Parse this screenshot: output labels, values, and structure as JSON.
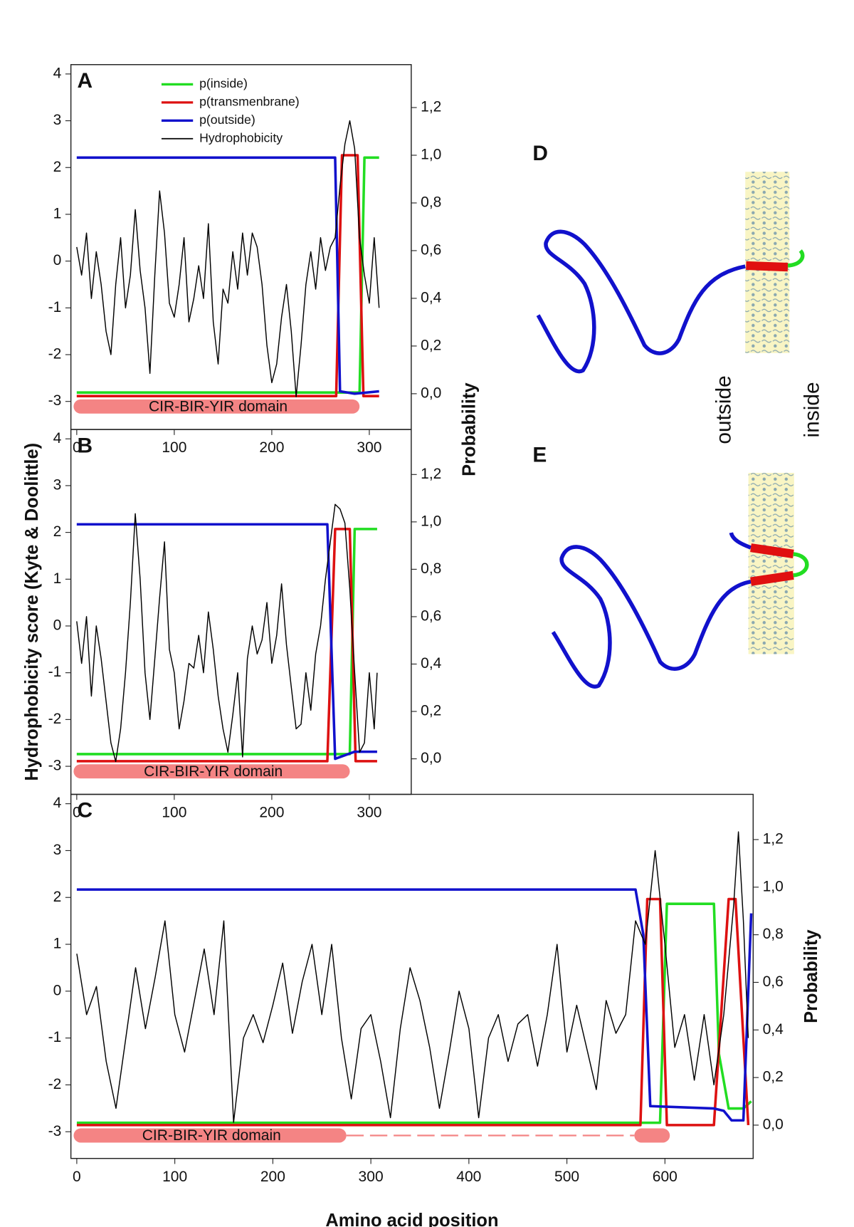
{
  "chart_data": [
    {
      "type": "line",
      "panel": "A",
      "xlim": [
        -6,
        343
      ],
      "xticks": [
        0,
        100,
        200,
        300
      ],
      "ylim": [
        -3.6,
        4.2
      ],
      "yticks": [
        -3,
        -2,
        -1,
        0,
        1,
        2,
        3,
        4
      ],
      "y2lim": [
        -0.15,
        1.38
      ],
      "y2ticks": [
        {
          "value": 0,
          "label": "0,0"
        },
        {
          "value": 0.2,
          "label": "0,2"
        },
        {
          "value": 0.4,
          "label": "0,4"
        },
        {
          "value": 0.6,
          "label": "0,6"
        },
        {
          "value": 0.8,
          "label": "0,8"
        },
        {
          "value": 1.0,
          "label": "1,0"
        },
        {
          "value": 1.2,
          "label": "1,2"
        }
      ],
      "legend": "top",
      "domain": {
        "label": "CIR-BIR-YIR domain",
        "color": "#f48484",
        "segments": [
          [
            0,
            290
          ]
        ]
      },
      "series": [
        {
          "name": "p(inside)",
          "color": "#22dd22",
          "axis": "y2",
          "x": [
            0,
            290,
            295,
            310
          ],
          "values": [
            0.005,
            0.005,
            0.99,
            0.99
          ]
        },
        {
          "name": "p(transmenbrane)",
          "color": "#dd1111",
          "axis": "y2",
          "x": [
            0,
            266,
            272,
            288,
            294,
            310
          ],
          "values": [
            -0.01,
            -0.01,
            1.0,
            1.0,
            -0.01,
            -0.01
          ]
        },
        {
          "name": "p(outside)",
          "color": "#1111cc",
          "axis": "y2",
          "x": [
            0,
            265,
            270,
            285,
            310
          ],
          "values": [
            0.99,
            0.99,
            0.01,
            0.0,
            0.01
          ]
        },
        {
          "name": "Hydrophobicity",
          "color": "#000000",
          "x": [
            0,
            5,
            10,
            15,
            20,
            25,
            30,
            35,
            40,
            45,
            50,
            55,
            60,
            65,
            70,
            75,
            80,
            85,
            90,
            95,
            100,
            105,
            110,
            115,
            120,
            125,
            130,
            135,
            140,
            145,
            150,
            155,
            160,
            165,
            170,
            175,
            180,
            185,
            190,
            195,
            200,
            205,
            210,
            215,
            220,
            225,
            230,
            235,
            240,
            245,
            250,
            255,
            260,
            265,
            270,
            275,
            280,
            285,
            290,
            295,
            300,
            305,
            310
          ],
          "values": [
            0.3,
            -0.3,
            0.6,
            -0.8,
            0.2,
            -0.5,
            -1.5,
            -2.0,
            -0.5,
            0.5,
            -1.0,
            -0.3,
            1.1,
            -0.2,
            -1.0,
            -2.4,
            -0.3,
            1.5,
            0.6,
            -0.9,
            -1.2,
            -0.5,
            0.5,
            -1.3,
            -0.8,
            -0.1,
            -0.8,
            0.8,
            -1.3,
            -2.2,
            -0.6,
            -0.9,
            0.2,
            -0.6,
            0.6,
            -0.3,
            0.6,
            0.3,
            -0.5,
            -1.8,
            -2.6,
            -2.2,
            -1.2,
            -0.5,
            -1.5,
            -2.9,
            -1.8,
            -0.5,
            0.2,
            -0.6,
            0.5,
            -0.2,
            0.3,
            0.5,
            1.6,
            2.5,
            3.0,
            2.4,
            0.5,
            -0.3,
            -0.9,
            0.5,
            -1.0
          ]
        }
      ]
    },
    {
      "type": "line",
      "panel": "B",
      "y_label": "Hydrophobicity score (Kyte & Doolittle)",
      "y2_label": "Probability",
      "xlim": [
        -6,
        343
      ],
      "xticks": [
        0,
        100,
        200,
        300
      ],
      "ylim": [
        -3.6,
        4.2
      ],
      "yticks": [
        -3,
        -2,
        -1,
        0,
        1,
        2,
        3,
        4
      ],
      "y2lim": [
        -0.15,
        1.39
      ],
      "y2ticks": [
        {
          "value": 0,
          "label": "0,0"
        },
        {
          "value": 0.2,
          "label": "0,2"
        },
        {
          "value": 0.4,
          "label": "0,4"
        },
        {
          "value": 0.6,
          "label": "0,6"
        },
        {
          "value": 0.8,
          "label": "0,8"
        },
        {
          "value": 1.0,
          "label": "1,0"
        },
        {
          "value": 1.2,
          "label": "1,2"
        }
      ],
      "domain": {
        "label": "CIR-BIR-YIR domain",
        "color": "#f48484",
        "segments": [
          [
            0,
            280
          ]
        ]
      },
      "series": [
        {
          "color": "#22dd22",
          "axis": "y2",
          "x": [
            0,
            280,
            285,
            308
          ],
          "values": [
            0.02,
            0.02,
            0.97,
            0.97
          ]
        },
        {
          "color": "#dd1111",
          "axis": "y2",
          "x": [
            0,
            257,
            265,
            280,
            286,
            308
          ],
          "values": [
            -0.01,
            -0.01,
            0.97,
            0.97,
            -0.01,
            -0.01
          ]
        },
        {
          "color": "#1111cc",
          "axis": "y2",
          "x": [
            0,
            257,
            265,
            285,
            308
          ],
          "values": [
            0.99,
            0.99,
            0.0,
            0.03,
            0.03
          ]
        },
        {
          "color": "#000000",
          "x": [
            0,
            5,
            10,
            15,
            20,
            25,
            30,
            35,
            40,
            45,
            50,
            55,
            60,
            65,
            70,
            75,
            80,
            85,
            90,
            95,
            100,
            105,
            110,
            115,
            120,
            125,
            130,
            135,
            140,
            145,
            150,
            155,
            160,
            165,
            170,
            175,
            180,
            185,
            190,
            195,
            200,
            205,
            210,
            215,
            220,
            225,
            230,
            235,
            240,
            245,
            250,
            255,
            260,
            265,
            270,
            275,
            280,
            285,
            290,
            295,
            300,
            305,
            308
          ],
          "values": [
            0.1,
            -0.8,
            0.2,
            -1.5,
            0.0,
            -0.7,
            -1.6,
            -2.5,
            -2.9,
            -2.2,
            -1.0,
            0.5,
            2.4,
            1.0,
            -1.0,
            -2.0,
            -0.7,
            0.6,
            1.8,
            -0.5,
            -1.0,
            -2.2,
            -1.6,
            -0.8,
            -0.9,
            -0.2,
            -1.0,
            0.3,
            -0.5,
            -1.5,
            -2.2,
            -2.7,
            -1.9,
            -1.0,
            -2.8,
            -0.7,
            0.0,
            -0.6,
            -0.3,
            0.5,
            -0.8,
            -0.2,
            0.9,
            -0.4,
            -1.3,
            -2.2,
            -2.1,
            -1.0,
            -1.8,
            -0.6,
            0.0,
            1.0,
            1.8,
            2.6,
            2.5,
            2.2,
            0.8,
            -1.0,
            -2.7,
            -2.5,
            -1.0,
            -2.2,
            -1.0
          ]
        }
      ]
    },
    {
      "type": "line",
      "panel": "C",
      "x_label": "Amino acid position",
      "y2_label": "Probability",
      "xlim": [
        -6,
        690
      ],
      "xticks": [
        0,
        100,
        200,
        300,
        400,
        500,
        600
      ],
      "ylim": [
        -3.57,
        4.2
      ],
      "yticks": [
        -3,
        -2,
        -1,
        0,
        1,
        2,
        3,
        4
      ],
      "y2lim": [
        -0.14,
        1.39
      ],
      "y2ticks": [
        {
          "value": 0,
          "label": "0,0"
        },
        {
          "value": 0.2,
          "label": "0,2"
        },
        {
          "value": 0.4,
          "label": "0,4"
        },
        {
          "value": 0.6,
          "label": "0,6"
        },
        {
          "value": 0.8,
          "label": "0,8"
        },
        {
          "value": 1.0,
          "label": "1,0"
        },
        {
          "value": 1.2,
          "label": "1,2"
        }
      ],
      "domain": {
        "label": "CIR-BIR-YIR domain",
        "color": "#f48484",
        "segments": [
          [
            0,
            275
          ],
          [
            572,
            605
          ]
        ]
      },
      "series": [
        {
          "color": "#22dd22",
          "axis": "y2",
          "x": [
            0,
            595,
            602,
            650,
            655,
            665,
            680,
            688
          ],
          "values": [
            0.01,
            0.01,
            0.93,
            0.93,
            0.3,
            0.07,
            0.07,
            0.1
          ]
        },
        {
          "color": "#dd1111",
          "axis": "y2",
          "x": [
            0,
            575,
            582,
            595,
            602,
            650,
            665,
            672,
            685
          ],
          "values": [
            0,
            0,
            0.95,
            0.95,
            0,
            0,
            0.95,
            0.95,
            0
          ]
        },
        {
          "color": "#1111cc",
          "axis": "y2",
          "x": [
            0,
            570,
            578,
            585,
            650,
            660,
            668,
            680,
            688
          ],
          "values": [
            0.99,
            0.99,
            0.8,
            0.08,
            0.07,
            0.06,
            0.02,
            0.02,
            0.89
          ]
        },
        {
          "color": "#000000",
          "x": [
            0,
            10,
            20,
            30,
            40,
            50,
            60,
            70,
            80,
            90,
            100,
            110,
            120,
            130,
            140,
            150,
            160,
            170,
            180,
            190,
            200,
            210,
            220,
            230,
            240,
            250,
            260,
            270,
            280,
            290,
            300,
            310,
            320,
            330,
            340,
            350,
            360,
            370,
            380,
            390,
            400,
            410,
            420,
            430,
            440,
            450,
            460,
            470,
            480,
            490,
            500,
            510,
            520,
            530,
            540,
            550,
            560,
            570,
            580,
            590,
            600,
            610,
            620,
            630,
            640,
            650,
            660,
            670,
            675,
            680,
            685
          ],
          "values": [
            0.8,
            -0.5,
            0.1,
            -1.5,
            -2.5,
            -1.0,
            0.5,
            -0.8,
            0.3,
            1.5,
            -0.5,
            -1.3,
            -0.2,
            0.9,
            -0.5,
            1.5,
            -2.8,
            -1.0,
            -0.5,
            -1.1,
            -0.3,
            0.6,
            -0.9,
            0.2,
            1.0,
            -0.5,
            1.0,
            -1.0,
            -2.3,
            -0.8,
            -0.5,
            -1.5,
            -2.7,
            -0.8,
            0.5,
            -0.2,
            -1.2,
            -2.5,
            -1.3,
            0.0,
            -0.8,
            -2.7,
            -1.0,
            -0.5,
            -1.5,
            -0.7,
            -0.5,
            -1.6,
            -0.5,
            1.0,
            -1.3,
            -0.3,
            -1.2,
            -2.1,
            -0.2,
            -0.9,
            -0.5,
            1.5,
            1.0,
            3.0,
            1.0,
            -1.2,
            -0.5,
            -1.9,
            -0.5,
            -2.0,
            -0.5,
            1.8,
            3.4,
            1.5,
            -1.0
          ]
        }
      ]
    }
  ],
  "diagrams": [
    {
      "panel": "D"
    },
    {
      "panel": "E"
    }
  ],
  "membrane_labels": {
    "outside": "outside",
    "inside": "inside"
  }
}
